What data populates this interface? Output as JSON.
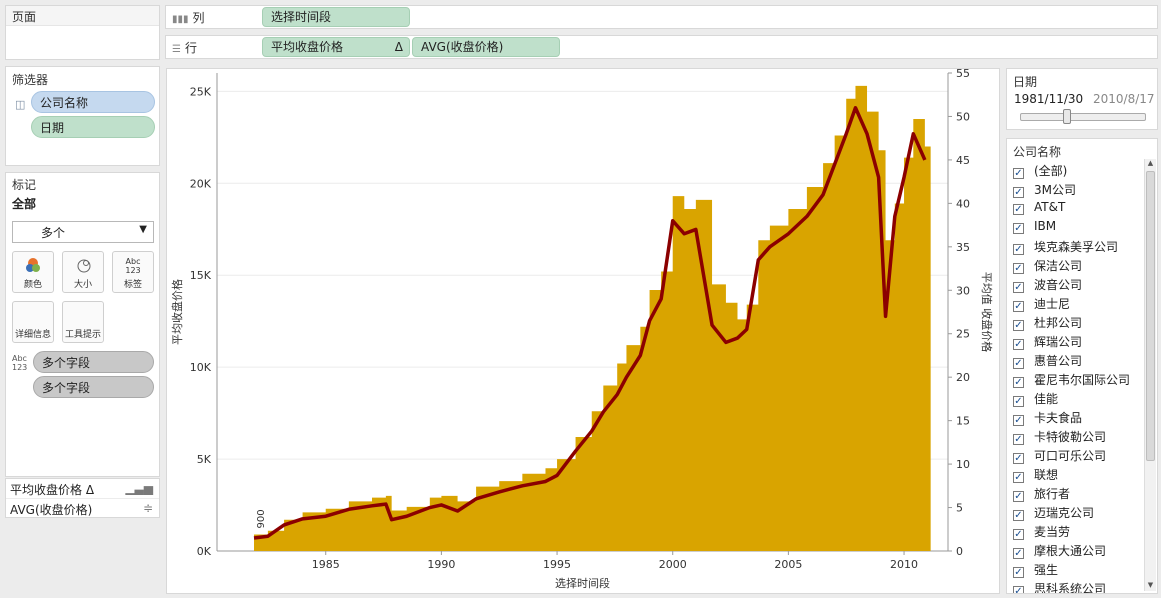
{
  "pages_panel": {
    "title": "页面"
  },
  "filters_panel": {
    "title": "筛选器",
    "items": [
      {
        "label": "公司名称",
        "icon": "database-icon"
      },
      {
        "label": "日期"
      }
    ]
  },
  "marks_panel": {
    "title": "标记",
    "scope": "全部",
    "mark_type": "多个",
    "buttons": [
      {
        "label": "颜色",
        "icon": "color-icon"
      },
      {
        "label": "大小",
        "icon": "size-icon"
      },
      {
        "label": "标签",
        "icon": "label-icon",
        "glyph": "Abc\n123"
      },
      {
        "label": "详细信息",
        "icon": "detail-icon"
      },
      {
        "label": "工具提示",
        "icon": "tooltip-icon"
      }
    ],
    "fields": [
      "多个字段",
      "多个字段"
    ],
    "label_field_icon": "Abc\n123"
  },
  "measure_names": [
    {
      "label": "平均收盘价格 Δ",
      "icon": "bar-chart-icon"
    },
    {
      "label": "AVG(收盘价格)",
      "icon": "line-chart-icon"
    }
  ],
  "columns_shelf": {
    "label": "列",
    "pills": [
      "选择时间段"
    ]
  },
  "rows_shelf": {
    "label": "行",
    "pills": [
      "平均收盘价格",
      "AVG(收盘价格)"
    ],
    "delta": "Δ"
  },
  "date_filter": {
    "title": "日期",
    "start": "1981/11/30",
    "end": "2010/8/17"
  },
  "company_filter": {
    "title": "公司名称",
    "items": [
      "(全部)",
      "3M公司",
      "AT&T",
      "IBM",
      "埃克森美孚公司",
      "保洁公司",
      "波音公司",
      "迪士尼",
      "杜邦公司",
      "辉瑞公司",
      "惠普公司",
      "霍尼韦尔国际公司",
      "佳能",
      "卡夫食品",
      "卡特彼勒公司",
      "可口可乐公司",
      "联想",
      "旅行者",
      "迈瑞克公司",
      "麦当劳",
      "摩根大通公司",
      "强生",
      "思科系统公司"
    ]
  },
  "colors": {
    "area": "#d9a400",
    "line": "#8b0000",
    "pill_green": "#bfe0cb",
    "pill_blue": "#c5d9ef"
  },
  "chart_data": {
    "type": "area",
    "xlabel": "选择时间段",
    "ylabel_left": "平均收盘价格",
    "ylabel_right": "平均值 收盘价格",
    "x_ticks": [
      "1985",
      "1990",
      "1995",
      "2000",
      "2005",
      "2010"
    ],
    "y_left_ticks": [
      "0K",
      "5K",
      "10K",
      "15K",
      "20K",
      "25K"
    ],
    "y_right_ticks": [
      "0",
      "5",
      "10",
      "15",
      "20",
      "25",
      "30",
      "35",
      "40",
      "45",
      "50",
      "55"
    ],
    "ylim_left": [
      0,
      26000
    ],
    "ylim_right": [
      0,
      55
    ],
    "xlim": [
      1980.3,
      2011.9
    ],
    "annotation": "900",
    "grid": true,
    "series": [
      {
        "name": "平均收盘价格",
        "kind": "area",
        "x": [
          1981.9,
          1982.5,
          1983.2,
          1984.0,
          1985.0,
          1986.0,
          1987.0,
          1987.6,
          1987.85,
          1988.5,
          1989.5,
          1990.0,
          1990.7,
          1991.5,
          1992.5,
          1993.5,
          1994.5,
          1995.0,
          1995.8,
          1996.5,
          1997.0,
          1997.6,
          1998.0,
          1998.6,
          1999.0,
          1999.5,
          2000.0,
          2000.5,
          2001.0,
          2001.7,
          2002.3,
          2002.8,
          2003.2,
          2003.7,
          2004.2,
          2005.0,
          2005.8,
          2006.5,
          2007.0,
          2007.5,
          2007.9,
          2008.4,
          2008.9,
          2009.2,
          2009.6,
          2010.0,
          2010.4,
          2010.9
        ],
        "y": [
          900,
          1100,
          1700,
          2100,
          2300,
          2700,
          2900,
          3000,
          2200,
          2400,
          2900,
          3000,
          2700,
          3500,
          3800,
          4200,
          4500,
          5000,
          6200,
          7600,
          9000,
          10200,
          11200,
          12200,
          14200,
          15200,
          19300,
          18600,
          19100,
          14500,
          13500,
          12600,
          13400,
          16900,
          17700,
          18600,
          19800,
          21100,
          22600,
          24600,
          25300,
          23900,
          21800,
          16900,
          18900,
          21400,
          23500,
          22000
        ]
      },
      {
        "name": "AVG(收盘价格)",
        "kind": "line",
        "x": [
          1981.9,
          1982.5,
          1983.2,
          1984.0,
          1985.0,
          1986.0,
          1987.0,
          1987.6,
          1987.85,
          1988.5,
          1989.5,
          1990.0,
          1990.7,
          1991.5,
          1992.5,
          1993.5,
          1994.5,
          1995.0,
          1995.8,
          1996.5,
          1997.0,
          1997.6,
          1998.0,
          1998.6,
          1999.0,
          1999.5,
          2000.0,
          2000.5,
          2001.0,
          2001.7,
          2002.3,
          2002.8,
          2003.2,
          2003.7,
          2004.2,
          2005.0,
          2005.8,
          2006.5,
          2007.0,
          2007.5,
          2007.9,
          2008.4,
          2008.9,
          2009.2,
          2009.6,
          2010.0,
          2010.4,
          2010.9
        ],
        "y": [
          1.5,
          1.7,
          3.0,
          3.7,
          4.0,
          4.8,
          5.2,
          5.4,
          3.6,
          4.0,
          5.0,
          5.3,
          4.6,
          6.0,
          6.8,
          7.5,
          8.0,
          8.7,
          11.5,
          13.8,
          16.0,
          18.0,
          20.0,
          22.5,
          26.5,
          29.0,
          38.0,
          36.5,
          37.0,
          26.0,
          24.0,
          24.5,
          25.5,
          33.5,
          35.0,
          36.5,
          38.5,
          41.0,
          44.5,
          48.0,
          51.0,
          48.0,
          43.0,
          27.0,
          38.5,
          43.0,
          48.0,
          45.0
        ]
      }
    ]
  }
}
